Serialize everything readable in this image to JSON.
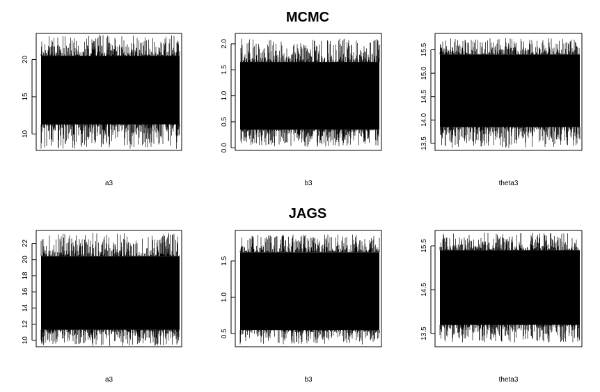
{
  "titles": {
    "top": "MCMC",
    "bottom": "JAGS"
  },
  "chart_data": [
    {
      "type": "line",
      "group": "MCMC",
      "xlabel": "a3",
      "ylabel": "",
      "yticks": [
        10,
        15,
        20
      ],
      "ylim": [
        7.8,
        23.5
      ],
      "band": {
        "low": 11.3,
        "high": 20.5,
        "min": 8.0,
        "max": 23.4
      }
    },
    {
      "type": "line",
      "group": "MCMC",
      "xlabel": "b3",
      "ylabel": "",
      "yticks": [
        0.0,
        0.5,
        1.0,
        1.5,
        2.0
      ],
      "ylim": [
        -0.05,
        2.2
      ],
      "band": {
        "low": 0.35,
        "high": 1.65,
        "min": 0.02,
        "max": 2.1
      }
    },
    {
      "type": "line",
      "group": "MCMC",
      "xlabel": "theta3",
      "ylabel": "",
      "yticks": [
        13.5,
        14.0,
        14.5,
        15.0,
        15.5
      ],
      "ylim": [
        13.35,
        15.85
      ],
      "band": {
        "low": 13.85,
        "high": 15.4,
        "min": 13.4,
        "max": 15.75
      }
    },
    {
      "type": "line",
      "group": "JAGS",
      "xlabel": "a3",
      "ylabel": "",
      "yticks": [
        10,
        12,
        14,
        16,
        18,
        20,
        22
      ],
      "ylim": [
        9.2,
        23.6
      ],
      "band": {
        "low": 11.3,
        "high": 20.4,
        "min": 9.3,
        "max": 23.3
      }
    },
    {
      "type": "line",
      "group": "JAGS",
      "xlabel": "b3",
      "ylabel": "",
      "yticks": [
        0.5,
        1.0,
        1.5
      ],
      "ylim": [
        0.32,
        1.92
      ],
      "band": {
        "low": 0.55,
        "high": 1.62,
        "min": 0.35,
        "max": 1.87
      }
    },
    {
      "type": "line",
      "group": "JAGS",
      "xlabel": "theta3",
      "ylabel": "",
      "yticks": [
        13.5,
        14.5,
        15.5
      ],
      "ylim": [
        13.2,
        15.85
      ],
      "band": {
        "low": 13.7,
        "high": 15.4,
        "min": 13.3,
        "max": 15.8
      }
    }
  ]
}
